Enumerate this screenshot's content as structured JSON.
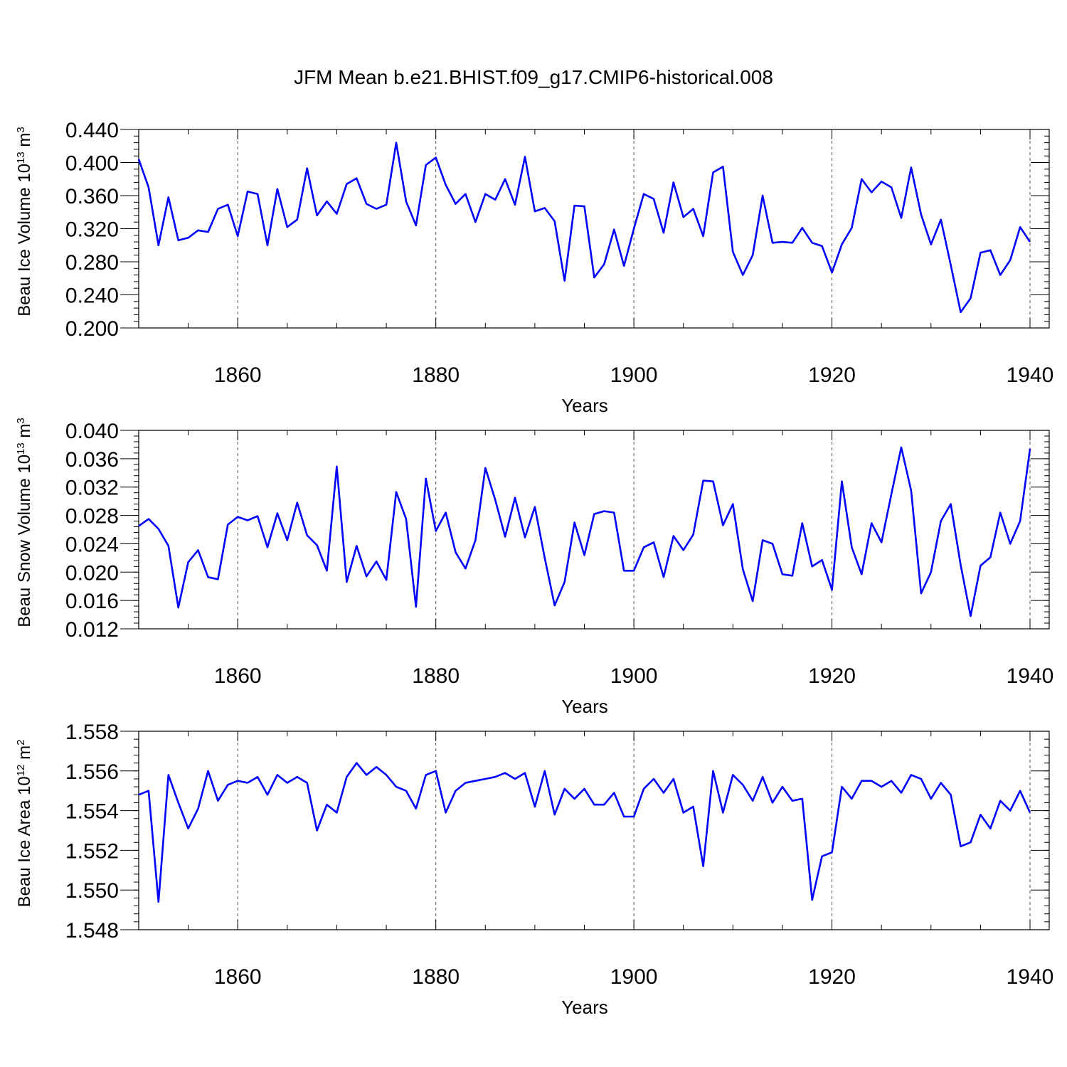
{
  "title": "JFM Mean b.e21.BHIST.f09_g17.CMIP6-historical.008",
  "line_color": "#0000ff",
  "chart_data": [
    {
      "type": "line",
      "series_name": "Beau Ice Volume",
      "ylabel": {
        "base": "Beau Ice Volume 10",
        "exp1": "13",
        "unit": " m",
        "exp2": "3"
      },
      "xlabel": "Years",
      "xlim": [
        1850,
        1940
      ],
      "ylim": [
        0.2,
        0.44
      ],
      "xticks": [
        1860,
        1880,
        1900,
        1920,
        1940
      ],
      "yticks": [
        "0.200",
        "0.240",
        "0.280",
        "0.320",
        "0.360",
        "0.400",
        "0.440"
      ],
      "yminor_step": 0.008,
      "x_start": 1850,
      "values": [
        0.404,
        0.37,
        0.3,
        0.358,
        0.306,
        0.309,
        0.318,
        0.316,
        0.344,
        0.349,
        0.311,
        0.365,
        0.362,
        0.3,
        0.368,
        0.322,
        0.331,
        0.393,
        0.336,
        0.353,
        0.338,
        0.374,
        0.381,
        0.35,
        0.344,
        0.349,
        0.424,
        0.353,
        0.324,
        0.397,
        0.406,
        0.373,
        0.35,
        0.362,
        0.328,
        0.362,
        0.355,
        0.38,
        0.349,
        0.407,
        0.341,
        0.345,
        0.329,
        0.257,
        0.348,
        0.347,
        0.261,
        0.277,
        0.319,
        0.275,
        0.32,
        0.362,
        0.356,
        0.315,
        0.376,
        0.334,
        0.344,
        0.311,
        0.388,
        0.395,
        0.292,
        0.264,
        0.288,
        0.36,
        0.303,
        0.304,
        0.303,
        0.321,
        0.303,
        0.299,
        0.267,
        0.301,
        0.321,
        0.38,
        0.364,
        0.377,
        0.37,
        0.333,
        0.394,
        0.337,
        0.301,
        0.331,
        0.276,
        0.219,
        0.236,
        0.291,
        0.294,
        0.264,
        0.282,
        0.322,
        0.304
      ]
    },
    {
      "type": "line",
      "series_name": "Beau Snow Volume",
      "ylabel": {
        "base": "Beau Snow Volume 10",
        "exp1": "13",
        "unit": " m",
        "exp2": "3"
      },
      "xlabel": "Years",
      "xlim": [
        1850,
        1940
      ],
      "ylim": [
        0.012,
        0.04
      ],
      "xticks": [
        1860,
        1880,
        1900,
        1920,
        1940
      ],
      "yticks": [
        "0.012",
        "0.016",
        "0.020",
        "0.024",
        "0.028",
        "0.032",
        "0.036",
        "0.040"
      ],
      "yminor_step": 0.0008,
      "x_start": 1850,
      "values": [
        0.0265,
        0.0275,
        0.0261,
        0.0237,
        0.015,
        0.0214,
        0.0231,
        0.0193,
        0.019,
        0.0267,
        0.0278,
        0.0273,
        0.0279,
        0.0235,
        0.0283,
        0.0245,
        0.0298,
        0.0252,
        0.0238,
        0.0202,
        0.0349,
        0.0186,
        0.0237,
        0.0194,
        0.0215,
        0.0189,
        0.0313,
        0.0275,
        0.0151,
        0.0332,
        0.0258,
        0.0284,
        0.0228,
        0.0205,
        0.0245,
        0.0347,
        0.0302,
        0.025,
        0.0305,
        0.0249,
        0.0292,
        0.022,
        0.0153,
        0.0186,
        0.027,
        0.0224,
        0.0282,
        0.0286,
        0.0284,
        0.0202,
        0.0202,
        0.0235,
        0.0242,
        0.0193,
        0.0251,
        0.0231,
        0.0253,
        0.0329,
        0.0328,
        0.0266,
        0.0296,
        0.0204,
        0.0159,
        0.0245,
        0.024,
        0.0197,
        0.0195,
        0.0269,
        0.0208,
        0.0217,
        0.0175,
        0.0328,
        0.0235,
        0.0197,
        0.0269,
        0.0242,
        0.031,
        0.0376,
        0.0315,
        0.017,
        0.02,
        0.0272,
        0.0296,
        0.021,
        0.0138,
        0.0209,
        0.0221,
        0.0284,
        0.024,
        0.0272,
        0.0374
      ]
    },
    {
      "type": "line",
      "series_name": "Beau Ice Area",
      "ylabel": {
        "base": "Beau Ice Area 10",
        "exp1": "12",
        "unit": " m",
        "exp2": "2"
      },
      "xlabel": "Years",
      "xlim": [
        1850,
        1940
      ],
      "ylim": [
        1.548,
        1.558
      ],
      "xticks": [
        1860,
        1880,
        1900,
        1920,
        1940
      ],
      "yticks": [
        "1.548",
        "1.550",
        "1.552",
        "1.554",
        "1.556",
        "1.558"
      ],
      "yminor_step": 0.0004,
      "x_start": 1850,
      "values": [
        1.5548,
        1.555,
        1.5494,
        1.5558,
        1.5544,
        1.5531,
        1.5541,
        1.556,
        1.5545,
        1.5553,
        1.5555,
        1.5554,
        1.5557,
        1.5548,
        1.5558,
        1.5554,
        1.5557,
        1.5554,
        1.553,
        1.5543,
        1.5539,
        1.5557,
        1.5564,
        1.5558,
        1.5562,
        1.5558,
        1.5552,
        1.555,
        1.5541,
        1.5558,
        1.556,
        1.5539,
        1.555,
        1.5554,
        1.5555,
        1.5556,
        1.5557,
        1.5559,
        1.5556,
        1.5559,
        1.5542,
        1.556,
        1.5538,
        1.5551,
        1.5546,
        1.5551,
        1.5543,
        1.5543,
        1.5549,
        1.5537,
        1.5537,
        1.5551,
        1.5556,
        1.5549,
        1.5556,
        1.5539,
        1.5542,
        1.5512,
        1.556,
        1.5539,
        1.5558,
        1.5553,
        1.5545,
        1.5557,
        1.5544,
        1.5552,
        1.5545,
        1.5546,
        1.5495,
        1.5517,
        1.5519,
        1.5552,
        1.5546,
        1.5555,
        1.5555,
        1.5552,
        1.5555,
        1.5549,
        1.5558,
        1.5556,
        1.5546,
        1.5554,
        1.5548,
        1.5522,
        1.5524,
        1.5538,
        1.5531,
        1.5545,
        1.554,
        1.555,
        1.5539
      ]
    }
  ]
}
